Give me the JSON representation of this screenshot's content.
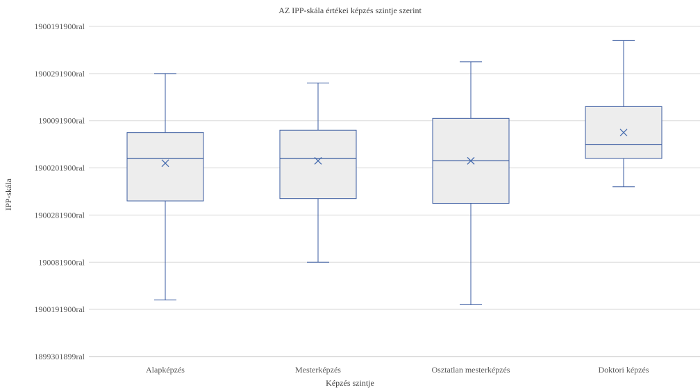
{
  "chart_data": {
    "type": "box",
    "title": "AZ IPP-skála értékei képzés szintje szerint",
    "xlabel": "Képzés szintje",
    "ylabel": "IPP-skála",
    "y_tick_labels": [
      "1900191900ral",
      "1900291900ral",
      "190091900ral",
      "1900201900ral",
      "1900281900ral",
      "190081900ral",
      "1900191900ral",
      "1899301899ral"
    ],
    "ylim": [
      0,
      7
    ],
    "grid": true,
    "categories": [
      "Alapképzés",
      "Mesterképzés",
      "Osztatlan mesterképzés",
      "Doktori képzés"
    ],
    "boxes": [
      {
        "min": 1.2,
        "q1": 3.3,
        "median": 4.2,
        "q3": 4.75,
        "max": 6.0,
        "mean": 4.1
      },
      {
        "min": 2.0,
        "q1": 3.35,
        "median": 4.2,
        "q3": 4.8,
        "max": 5.8,
        "mean": 4.15
      },
      {
        "min": 1.1,
        "q1": 3.25,
        "median": 4.15,
        "q3": 5.05,
        "max": 6.25,
        "mean": 4.15
      },
      {
        "min": 3.6,
        "q1": 4.2,
        "median": 4.5,
        "q3": 5.3,
        "max": 6.7,
        "mean": 4.75
      }
    ],
    "colors": {
      "box_stroke": "#3a5ba0",
      "box_fill": "#ededed",
      "mean_marker": "#4a6fb0",
      "grid": "#d9d9d9",
      "axis": "#bfbfbf"
    }
  }
}
